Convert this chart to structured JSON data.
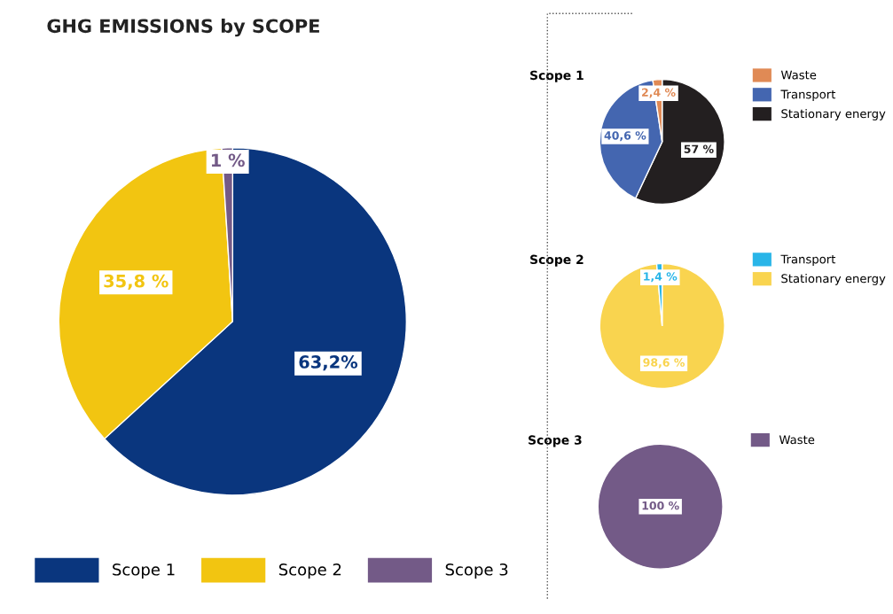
{
  "chart_data": [
    {
      "type": "pie",
      "title": "GHG EMISSIONS by SCOPE",
      "categories": [
        "Scope 1",
        "Scope 2",
        "Scope 3"
      ],
      "values": [
        63.2,
        35.8,
        1
      ],
      "colors": [
        "#0a367e",
        "#f2c511",
        "#735a87"
      ],
      "value_labels": [
        "63,2%",
        "35,8 %",
        "1 %"
      ],
      "legend": "bottom"
    },
    {
      "type": "pie",
      "title": "Scope 1",
      "categories": [
        "Stationary energy",
        "Transport",
        "Waste"
      ],
      "values": [
        57,
        40.6,
        2.4
      ],
      "colors": [
        "#231f20",
        "#4466b0",
        "#e08a55"
      ],
      "value_labels": [
        "57 %",
        "40,6 %",
        "2,4 %"
      ],
      "legend": "right"
    },
    {
      "type": "pie",
      "title": "Scope 2",
      "categories": [
        "Stationary energy",
        "Transport"
      ],
      "values": [
        98.6,
        1.4
      ],
      "colors": [
        "#f9d44f",
        "#29b5e8"
      ],
      "value_labels": [
        "98,6 %",
        "1,4 %"
      ],
      "legend": "right"
    },
    {
      "type": "pie",
      "title": "Scope 3",
      "categories": [
        "Waste"
      ],
      "values": [
        100
      ],
      "colors": [
        "#735a87"
      ],
      "value_labels": [
        "100 %"
      ],
      "legend": "right"
    }
  ]
}
